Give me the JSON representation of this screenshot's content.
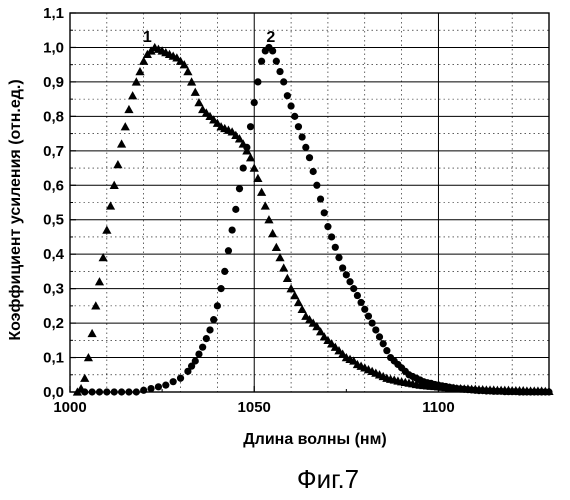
{
  "caption": "Фиг.7",
  "chart_data": {
    "type": "scatter",
    "title": "",
    "xlabel": "Длина волны (нм)",
    "ylabel": "Коэффициент усиления (отн.ед.)",
    "xlim": [
      1000,
      1130
    ],
    "ylim": [
      0,
      1.1
    ],
    "x_ticks": [
      1000,
      1050,
      1100
    ],
    "x_tick_labels": [
      "1000",
      "1050",
      "1100"
    ],
    "y_ticks": [
      0,
      0.1,
      0.2,
      0.3,
      0.4,
      0.5,
      0.6,
      0.7,
      0.8,
      0.9,
      1.0,
      1.1
    ],
    "y_tick_labels": [
      "0,0",
      "0,1",
      "0,2",
      "0,3",
      "0,4",
      "0,5",
      "0,6",
      "0,7",
      "0,8",
      "0,9",
      "1,0",
      "1,1"
    ],
    "grid": true,
    "series": [
      {
        "name": "1",
        "marker": "triangle",
        "color": "#000000",
        "label_at": [
          1021,
          1.01
        ],
        "x": [
          1002,
          1003,
          1004,
          1005,
          1006,
          1007,
          1008,
          1009,
          1010,
          1011,
          1012,
          1013,
          1014,
          1015,
          1016,
          1017,
          1018,
          1019,
          1020,
          1021,
          1022,
          1023,
          1024,
          1025,
          1026,
          1027,
          1028,
          1029,
          1030,
          1031,
          1032,
          1033,
          1034,
          1035,
          1036,
          1037,
          1038,
          1039,
          1040,
          1041,
          1042,
          1043,
          1044,
          1045,
          1046,
          1047,
          1048,
          1049,
          1050,
          1051,
          1052,
          1053,
          1054,
          1055,
          1056,
          1057,
          1058,
          1059,
          1060,
          1061,
          1062,
          1063,
          1064,
          1065,
          1066,
          1067,
          1068,
          1069,
          1070,
          1071,
          1072,
          1073,
          1074,
          1075,
          1076,
          1077,
          1078,
          1079,
          1080,
          1081,
          1082,
          1083,
          1084,
          1085,
          1086,
          1087,
          1088,
          1089,
          1090,
          1091,
          1092,
          1093,
          1094,
          1095,
          1096,
          1097,
          1098,
          1099,
          1100,
          1101,
          1102,
          1103,
          1104,
          1105,
          1106,
          1107,
          1108,
          1109,
          1110,
          1111,
          1112,
          1113,
          1114,
          1115,
          1116,
          1117,
          1118,
          1119,
          1120,
          1121,
          1122,
          1123,
          1124,
          1125,
          1126,
          1127,
          1128,
          1129,
          1130
        ],
        "y": [
          0.0,
          0.01,
          0.04,
          0.1,
          0.17,
          0.25,
          0.32,
          0.39,
          0.47,
          0.54,
          0.6,
          0.66,
          0.72,
          0.77,
          0.82,
          0.86,
          0.9,
          0.93,
          0.96,
          0.98,
          0.99,
          1.0,
          0.995,
          0.99,
          0.985,
          0.98,
          0.975,
          0.97,
          0.96,
          0.95,
          0.93,
          0.9,
          0.87,
          0.84,
          0.82,
          0.81,
          0.8,
          0.79,
          0.78,
          0.77,
          0.765,
          0.76,
          0.755,
          0.745,
          0.735,
          0.72,
          0.7,
          0.68,
          0.65,
          0.62,
          0.58,
          0.54,
          0.5,
          0.46,
          0.42,
          0.39,
          0.36,
          0.33,
          0.3,
          0.28,
          0.26,
          0.24,
          0.22,
          0.21,
          0.2,
          0.19,
          0.175,
          0.16,
          0.15,
          0.14,
          0.13,
          0.12,
          0.11,
          0.1,
          0.095,
          0.09,
          0.08,
          0.075,
          0.07,
          0.065,
          0.06,
          0.055,
          0.05,
          0.045,
          0.04,
          0.037,
          0.035,
          0.032,
          0.03,
          0.028,
          0.026,
          0.024,
          0.022,
          0.02,
          0.019,
          0.018,
          0.017,
          0.016,
          0.015,
          0.014,
          0.013,
          0.012,
          0.011,
          0.01,
          0.01,
          0.009,
          0.009,
          0.008,
          0.008,
          0.007,
          0.007,
          0.006,
          0.006,
          0.006,
          0.005,
          0.005,
          0.005,
          0.005,
          0.004,
          0.004,
          0.004,
          0.004,
          0.003,
          0.003,
          0.003,
          0.003,
          0.003,
          0.002,
          0.002
        ]
      },
      {
        "name": "2",
        "marker": "circle",
        "color": "#000000",
        "label_at": [
          1054.5,
          1.01
        ],
        "x": [
          1004,
          1006,
          1008,
          1010,
          1012,
          1014,
          1016,
          1018,
          1020,
          1022,
          1024,
          1026,
          1028,
          1030,
          1032,
          1033,
          1034,
          1035,
          1036,
          1037,
          1038,
          1039,
          1040,
          1041,
          1042,
          1043,
          1044,
          1045,
          1046,
          1047,
          1048,
          1049,
          1050,
          1051,
          1052,
          1053,
          1054,
          1055,
          1056,
          1057,
          1058,
          1059,
          1060,
          1061,
          1062,
          1063,
          1064,
          1065,
          1066,
          1067,
          1068,
          1069,
          1070,
          1071,
          1072,
          1073,
          1074,
          1075,
          1076,
          1077,
          1078,
          1079,
          1080,
          1081,
          1082,
          1083,
          1084,
          1085,
          1086,
          1087,
          1088,
          1089,
          1090,
          1091,
          1092,
          1093,
          1094,
          1095,
          1096,
          1097,
          1098,
          1099,
          1100,
          1101,
          1102,
          1103,
          1104,
          1105,
          1106,
          1107,
          1108,
          1109,
          1110,
          1111,
          1112,
          1113,
          1114,
          1115,
          1116,
          1117,
          1118,
          1119,
          1120,
          1121,
          1122,
          1123,
          1124,
          1125,
          1126,
          1127,
          1128,
          1129,
          1130
        ],
        "y": [
          0.0,
          0.0,
          0.0,
          0.0,
          0.0,
          0.0,
          0.0,
          0.0,
          0.005,
          0.01,
          0.015,
          0.02,
          0.03,
          0.04,
          0.06,
          0.075,
          0.09,
          0.11,
          0.13,
          0.155,
          0.18,
          0.21,
          0.25,
          0.3,
          0.35,
          0.41,
          0.47,
          0.53,
          0.59,
          0.65,
          0.71,
          0.77,
          0.84,
          0.9,
          0.96,
          0.99,
          1.0,
          0.99,
          0.96,
          0.93,
          0.9,
          0.86,
          0.83,
          0.8,
          0.77,
          0.74,
          0.71,
          0.68,
          0.64,
          0.6,
          0.56,
          0.52,
          0.48,
          0.45,
          0.42,
          0.39,
          0.36,
          0.34,
          0.32,
          0.3,
          0.28,
          0.26,
          0.24,
          0.22,
          0.2,
          0.18,
          0.16,
          0.14,
          0.12,
          0.1,
          0.09,
          0.08,
          0.07,
          0.06,
          0.05,
          0.045,
          0.04,
          0.035,
          0.03,
          0.027,
          0.025,
          0.022,
          0.02,
          0.018,
          0.016,
          0.014,
          0.012,
          0.01,
          0.009,
          0.008,
          0.007,
          0.006,
          0.005,
          0.004,
          0.004,
          0.003,
          0.003,
          0.002,
          0.002,
          0.002,
          0.001,
          0.001,
          0.001,
          0.001,
          0.0,
          0.0,
          0.0,
          0.0,
          0.0,
          0.0,
          0.0,
          0.0,
          0.0
        ]
      }
    ]
  }
}
